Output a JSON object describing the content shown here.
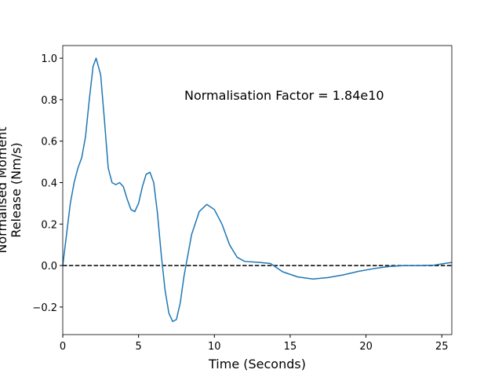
{
  "chart_data": {
    "type": "line",
    "xlabel": "Time (Seconds)",
    "ylabel": [
      "Normalised Moment",
      "Release (Nm/s)"
    ],
    "annotation": "Normalisation Factor = 1.84e10",
    "xlim": [
      0,
      25.66
    ],
    "ylim": [
      -0.333,
      1.061
    ],
    "xticks": [
      0,
      5,
      10,
      15,
      20,
      25
    ],
    "yticks": [
      {
        "value": -0.2,
        "label": "−0.2"
      },
      {
        "value": 0,
        "label": "0.0"
      },
      0.2,
      0.4,
      0.6,
      0.8,
      {
        "value": 1,
        "label": "1.0"
      }
    ],
    "reference_line": 0,
    "reference_color": "#000000",
    "x": [
      0,
      0.25,
      0.5,
      0.75,
      1.0,
      1.25,
      1.5,
      1.75,
      2.0,
      2.2,
      2.5,
      2.75,
      3.0,
      3.25,
      3.5,
      3.75,
      4.0,
      4.25,
      4.5,
      4.75,
      5.0,
      5.25,
      5.5,
      5.75,
      6.0,
      6.25,
      6.5,
      6.75,
      7.0,
      7.25,
      7.5,
      7.75,
      8.0,
      8.5,
      9.0,
      9.5,
      10.0,
      10.5,
      11.0,
      11.5,
      12.0,
      13.0,
      13.7,
      14.5,
      15.5,
      16.5,
      17.5,
      18.5,
      19.5,
      20.5,
      21.5,
      22.5,
      23.5,
      24.5,
      25.0,
      25.66
    ],
    "series": [
      {
        "color": "#1f77b4",
        "values": [
          0,
          0.15,
          0.3,
          0.4,
          0.47,
          0.52,
          0.62,
          0.8,
          0.96,
          1.0,
          0.92,
          0.7,
          0.47,
          0.4,
          0.39,
          0.4,
          0.38,
          0.32,
          0.27,
          0.26,
          0.3,
          0.38,
          0.44,
          0.45,
          0.4,
          0.25,
          0.05,
          -0.12,
          -0.23,
          -0.27,
          -0.26,
          -0.18,
          -0.05,
          0.15,
          0.26,
          0.295,
          0.27,
          0.2,
          0.1,
          0.04,
          0.02,
          0.015,
          0.01,
          -0.03,
          -0.055,
          -0.065,
          -0.058,
          -0.045,
          -0.028,
          -0.015,
          -0.005,
          0,
          0,
          0.002,
          0.008,
          0.015
        ]
      }
    ]
  }
}
